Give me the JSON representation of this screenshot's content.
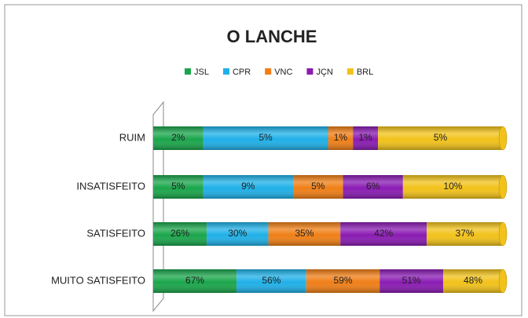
{
  "chart_data": {
    "type": "bar",
    "stacking": "percent",
    "orientation": "horizontal",
    "title": "O LANCHE",
    "categories": [
      "RUIM",
      "INSATISFEITO",
      "SATISFEITO",
      "MUITO SATISFEITO"
    ],
    "series": [
      {
        "name": "JSL",
        "color": "#1aa64b",
        "values": [
          2,
          5,
          26,
          67
        ],
        "value_labels": [
          "2%",
          "5%",
          "26%",
          "67%"
        ]
      },
      {
        "name": "CPR",
        "color": "#1fb0e8",
        "values": [
          5,
          9,
          30,
          56
        ],
        "value_labels": [
          "5%",
          "9%",
          "30%",
          "56%"
        ]
      },
      {
        "name": "VNC",
        "color": "#f07f16",
        "values": [
          1,
          5,
          35,
          59
        ],
        "value_labels": [
          "1%",
          "5%",
          "35%",
          "59%"
        ]
      },
      {
        "name": "JÇN",
        "color": "#8a1bb3",
        "values": [
          1,
          6,
          42,
          51
        ],
        "value_labels": [
          "1%",
          "6%",
          "42%",
          "51%"
        ]
      },
      {
        "name": "BRL",
        "color": "#f2c21a",
        "values": [
          5,
          10,
          37,
          48
        ],
        "value_labels": [
          "5%",
          "10%",
          "37%",
          "48%"
        ]
      }
    ],
    "legend": "top"
  }
}
